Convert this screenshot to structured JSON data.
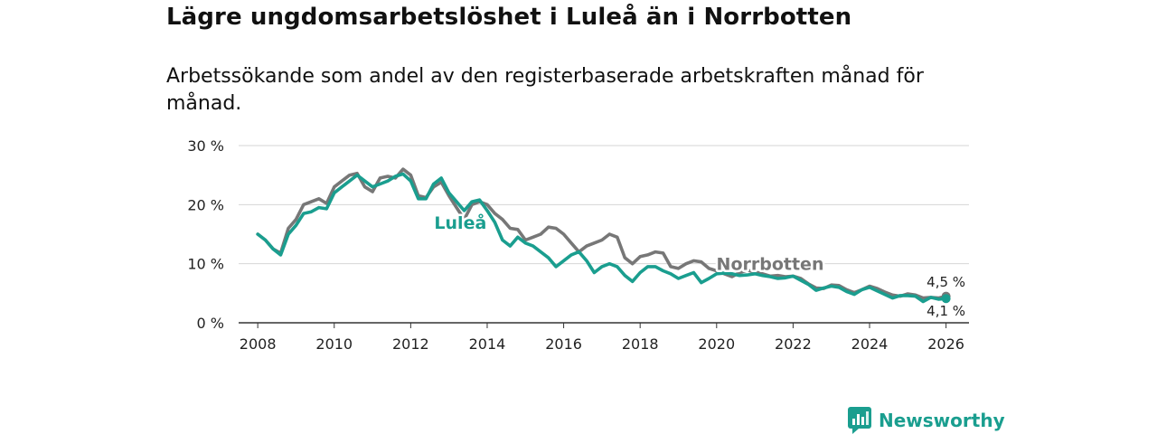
{
  "title": "Lägre ungdomsarbetslöshet i Luleå än i Norrbotten",
  "subtitle": "Arbetssökande som andel av den registerbaserade arbetskraften månad för månad.",
  "brand": {
    "name": "Newsworthy",
    "icon": "bar-chart-logo-icon",
    "color": "#1a9e8f"
  },
  "chart_data": {
    "type": "line",
    "title": "Lägre ungdomsarbetslöshet i Luleå än i Norrbotten",
    "subtitle": "Arbetssökande som andel av den registerbaserade arbetskraften månad för månad.",
    "xlabel": "",
    "ylabel": "",
    "xlim": [
      2007.5,
      2026.6
    ],
    "ylim": [
      0,
      30
    ],
    "grid": true,
    "legend": "inline labels",
    "x_ticks": [
      {
        "value": 2008,
        "label": "2008"
      },
      {
        "value": 2010,
        "label": "2010"
      },
      {
        "value": 2012,
        "label": "2012"
      },
      {
        "value": 2014,
        "label": "2014"
      },
      {
        "value": 2016,
        "label": "2016"
      },
      {
        "value": 2018,
        "label": "2018"
      },
      {
        "value": 2020,
        "label": "2020"
      },
      {
        "value": 2022,
        "label": "2022"
      },
      {
        "value": 2024,
        "label": "2024"
      },
      {
        "value": 2026,
        "label": "2026"
      }
    ],
    "y_ticks": [
      {
        "value": 0,
        "label": "0 %"
      },
      {
        "value": 10,
        "label": "10 %"
      },
      {
        "value": 20,
        "label": "20 %"
      },
      {
        "value": 30,
        "label": "30 %"
      }
    ],
    "series": [
      {
        "name": "Norrbotten",
        "label": "Norrbotten",
        "color": "#777777",
        "end_label": "4,5 %",
        "end_value": 4.5,
        "label_at": [
          2021.4,
          10
        ],
        "points": [
          [
            2008.0,
            15
          ],
          [
            2008.2,
            14
          ],
          [
            2008.4,
            12.5
          ],
          [
            2008.6,
            11.8
          ],
          [
            2008.8,
            16
          ],
          [
            2009.0,
            17.5
          ],
          [
            2009.2,
            20
          ],
          [
            2009.4,
            20.5
          ],
          [
            2009.6,
            21
          ],
          [
            2009.8,
            20.2
          ],
          [
            2010.0,
            23
          ],
          [
            2010.2,
            24
          ],
          [
            2010.4,
            25
          ],
          [
            2010.6,
            25.3
          ],
          [
            2010.8,
            23
          ],
          [
            2011.0,
            22.2
          ],
          [
            2011.2,
            24.5
          ],
          [
            2011.4,
            24.8
          ],
          [
            2011.6,
            24.5
          ],
          [
            2011.8,
            26
          ],
          [
            2012.0,
            25
          ],
          [
            2012.2,
            21.5
          ],
          [
            2012.4,
            21.2
          ],
          [
            2012.6,
            23
          ],
          [
            2012.8,
            23.8
          ],
          [
            2013.0,
            21.5
          ],
          [
            2013.2,
            19.5
          ],
          [
            2013.4,
            17.5
          ],
          [
            2013.6,
            20
          ],
          [
            2013.8,
            20.5
          ],
          [
            2014.0,
            20
          ],
          [
            2014.2,
            18.5
          ],
          [
            2014.4,
            17.5
          ],
          [
            2014.6,
            16
          ],
          [
            2014.8,
            15.8
          ],
          [
            2015.0,
            14
          ],
          [
            2015.2,
            14.5
          ],
          [
            2015.4,
            15
          ],
          [
            2015.6,
            16.2
          ],
          [
            2015.8,
            16
          ],
          [
            2016.0,
            15
          ],
          [
            2016.2,
            13.5
          ],
          [
            2016.4,
            12
          ],
          [
            2016.6,
            13
          ],
          [
            2016.8,
            13.5
          ],
          [
            2017.0,
            14
          ],
          [
            2017.2,
            15
          ],
          [
            2017.4,
            14.5
          ],
          [
            2017.6,
            11
          ],
          [
            2017.8,
            10
          ],
          [
            2018.0,
            11.2
          ],
          [
            2018.2,
            11.5
          ],
          [
            2018.4,
            12
          ],
          [
            2018.6,
            11.8
          ],
          [
            2018.8,
            9.5
          ],
          [
            2019.0,
            9.2
          ],
          [
            2019.2,
            10
          ],
          [
            2019.4,
            10.5
          ],
          [
            2019.6,
            10.3
          ],
          [
            2019.8,
            9.2
          ],
          [
            2020.0,
            8.8
          ],
          [
            2020.2,
            8.3
          ],
          [
            2020.4,
            7.8
          ],
          [
            2020.6,
            8.5
          ],
          [
            2020.8,
            8.9
          ],
          [
            2021.0,
            8.6
          ],
          [
            2021.2,
            8.3
          ],
          [
            2021.4,
            7.9
          ],
          [
            2021.6,
            8.0
          ],
          [
            2021.8,
            7.8
          ],
          [
            2022.0,
            7.9
          ],
          [
            2022.2,
            7.5
          ],
          [
            2022.4,
            6.6
          ],
          [
            2022.6,
            5.9
          ],
          [
            2022.8,
            5.8
          ],
          [
            2023.0,
            6.4
          ],
          [
            2023.2,
            6.3
          ],
          [
            2023.4,
            5.6
          ],
          [
            2023.6,
            5.1
          ],
          [
            2023.8,
            5.6
          ],
          [
            2024.0,
            6.2
          ],
          [
            2024.2,
            5.8
          ],
          [
            2024.4,
            5.2
          ],
          [
            2024.6,
            4.7
          ],
          [
            2024.8,
            4.5
          ],
          [
            2025.0,
            4.9
          ],
          [
            2025.2,
            4.7
          ],
          [
            2025.4,
            4.2
          ],
          [
            2025.6,
            4.3
          ],
          [
            2025.8,
            4.2
          ],
          [
            2026.0,
            4.5
          ]
        ]
      },
      {
        "name": "Luleå",
        "label": "Luleå",
        "color": "#1a9e8f",
        "end_label": "4,1 %",
        "end_value": 4.1,
        "label_at": [
          2013.3,
          17
        ],
        "points": [
          [
            2008.0,
            15
          ],
          [
            2008.2,
            14
          ],
          [
            2008.4,
            12.5
          ],
          [
            2008.6,
            11.5
          ],
          [
            2008.8,
            15
          ],
          [
            2009.0,
            16.5
          ],
          [
            2009.2,
            18.5
          ],
          [
            2009.4,
            18.8
          ],
          [
            2009.6,
            19.5
          ],
          [
            2009.8,
            19.3
          ],
          [
            2010.0,
            22
          ],
          [
            2010.2,
            23
          ],
          [
            2010.4,
            24
          ],
          [
            2010.6,
            25
          ],
          [
            2010.8,
            24
          ],
          [
            2011.0,
            23
          ],
          [
            2011.2,
            23.5
          ],
          [
            2011.4,
            24
          ],
          [
            2011.6,
            24.8
          ],
          [
            2011.8,
            25.2
          ],
          [
            2012.0,
            24
          ],
          [
            2012.2,
            21
          ],
          [
            2012.4,
            21
          ],
          [
            2012.6,
            23.5
          ],
          [
            2012.8,
            24.5
          ],
          [
            2013.0,
            22
          ],
          [
            2013.2,
            20.5
          ],
          [
            2013.4,
            19
          ],
          [
            2013.6,
            20.5
          ],
          [
            2013.8,
            20.8
          ],
          [
            2014.0,
            19
          ],
          [
            2014.2,
            17
          ],
          [
            2014.4,
            14
          ],
          [
            2014.6,
            13
          ],
          [
            2014.8,
            14.5
          ],
          [
            2015.0,
            13.5
          ],
          [
            2015.2,
            13
          ],
          [
            2015.4,
            12
          ],
          [
            2015.6,
            11
          ],
          [
            2015.8,
            9.5
          ],
          [
            2016.0,
            10.5
          ],
          [
            2016.2,
            11.5
          ],
          [
            2016.4,
            12
          ],
          [
            2016.6,
            10.5
          ],
          [
            2016.8,
            8.5
          ],
          [
            2017.0,
            9.5
          ],
          [
            2017.2,
            10
          ],
          [
            2017.4,
            9.5
          ],
          [
            2017.6,
            8
          ],
          [
            2017.8,
            7
          ],
          [
            2018.0,
            8.5
          ],
          [
            2018.2,
            9.5
          ],
          [
            2018.4,
            9.5
          ],
          [
            2018.6,
            8.8
          ],
          [
            2018.8,
            8.3
          ],
          [
            2019.0,
            7.5
          ],
          [
            2019.2,
            8
          ],
          [
            2019.4,
            8.5
          ],
          [
            2019.6,
            6.8
          ],
          [
            2019.8,
            7.5
          ],
          [
            2020.0,
            8.3
          ],
          [
            2020.2,
            8.4
          ],
          [
            2020.4,
            8.3
          ],
          [
            2020.6,
            8.0
          ],
          [
            2020.8,
            8.1
          ],
          [
            2021.0,
            8.3
          ],
          [
            2021.2,
            8.0
          ],
          [
            2021.4,
            7.8
          ],
          [
            2021.6,
            7.5
          ],
          [
            2021.8,
            7.6
          ],
          [
            2022.0,
            7.9
          ],
          [
            2022.2,
            7.2
          ],
          [
            2022.4,
            6.5
          ],
          [
            2022.6,
            5.5
          ],
          [
            2022.8,
            5.9
          ],
          [
            2023.0,
            6.2
          ],
          [
            2023.2,
            6.0
          ],
          [
            2023.4,
            5.3
          ],
          [
            2023.6,
            4.8
          ],
          [
            2023.8,
            5.6
          ],
          [
            2024.0,
            6.0
          ],
          [
            2024.2,
            5.4
          ],
          [
            2024.4,
            4.8
          ],
          [
            2024.6,
            4.2
          ],
          [
            2024.8,
            4.6
          ],
          [
            2025.0,
            4.6
          ],
          [
            2025.2,
            4.5
          ],
          [
            2025.4,
            3.6
          ],
          [
            2025.6,
            4.3
          ],
          [
            2025.8,
            4.0
          ],
          [
            2026.0,
            4.1
          ]
        ]
      }
    ]
  }
}
